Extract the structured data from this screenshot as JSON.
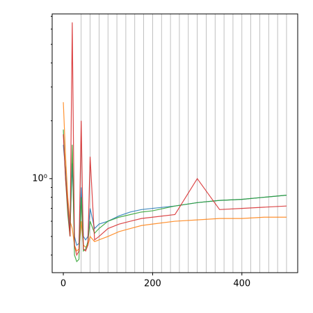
{
  "chart_data": {
    "type": "line",
    "log_y": true,
    "x": [
      0,
      5,
      10,
      15,
      20,
      25,
      30,
      35,
      40,
      45,
      50,
      55,
      60,
      70,
      80,
      100,
      125,
      150,
      175,
      200,
      250,
      300,
      350,
      400,
      450,
      500
    ],
    "series": [
      {
        "color": "#1f77b4",
        "values": [
          1.5,
          1.1,
          0.75,
          0.55,
          1.2,
          0.5,
          0.45,
          0.46,
          0.9,
          0.5,
          0.48,
          0.5,
          0.7,
          0.55,
          0.58,
          0.6,
          0.64,
          0.67,
          0.69,
          0.7,
          0.72,
          0.75,
          0.77,
          0.78,
          0.8,
          0.82
        ]
      },
      {
        "color": "#ff7f0e",
        "values": [
          2.5,
          1.3,
          0.8,
          0.6,
          0.55,
          0.45,
          0.42,
          0.43,
          0.6,
          0.45,
          0.44,
          0.45,
          0.5,
          0.47,
          0.48,
          0.5,
          0.53,
          0.55,
          0.57,
          0.58,
          0.6,
          0.61,
          0.62,
          0.62,
          0.63,
          0.63
        ]
      },
      {
        "color": "#2ca02c",
        "values": [
          1.8,
          1.0,
          0.65,
          0.5,
          1.5,
          0.4,
          0.37,
          0.38,
          0.8,
          0.42,
          0.43,
          0.47,
          0.6,
          0.52,
          0.55,
          0.6,
          0.63,
          0.65,
          0.67,
          0.68,
          0.72,
          0.75,
          0.77,
          0.78,
          0.8,
          0.82
        ]
      },
      {
        "color": "#d62728",
        "values": [
          1.7,
          1.0,
          0.7,
          0.5,
          6.5,
          0.45,
          0.4,
          0.42,
          2.0,
          0.43,
          0.42,
          0.45,
          1.3,
          0.48,
          0.5,
          0.55,
          0.58,
          0.6,
          0.62,
          0.63,
          0.65,
          1.0,
          0.69,
          0.7,
          0.71,
          0.72
        ]
      }
    ],
    "xlim": [
      -25,
      525
    ],
    "xticks": [
      0,
      200,
      400
    ],
    "xgrid": [
      40,
      60,
      80,
      100,
      120,
      140,
      160,
      180,
      200,
      220,
      240,
      260,
      280,
      300,
      320,
      340,
      360,
      380,
      400,
      420,
      440,
      460,
      480,
      500
    ],
    "ylim": [
      0.324,
      7.2
    ],
    "yticks": [
      {
        "value": 1,
        "label": "10⁰"
      }
    ],
    "yminorticks": [
      0.4,
      0.5,
      0.6,
      0.7,
      0.8,
      0.9,
      2,
      3,
      4,
      5,
      6,
      7
    ]
  }
}
